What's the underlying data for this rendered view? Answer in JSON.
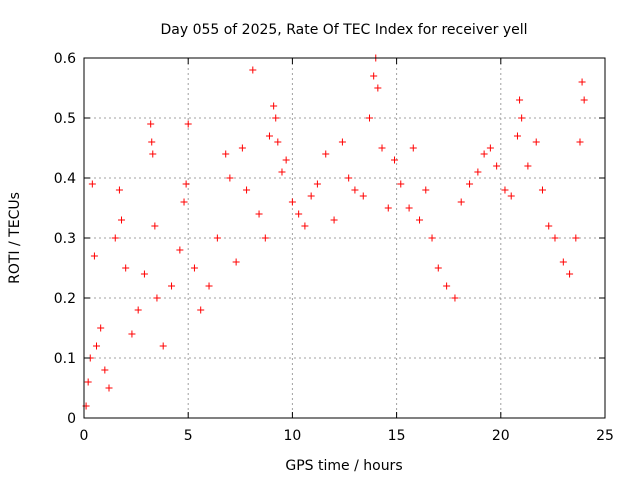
{
  "chart_data": {
    "type": "scatter",
    "title": "Day 055 of 2025, Rate Of TEC Index for receiver yell",
    "xlabel": "GPS time / hours",
    "ylabel": "ROTI / TECUs",
    "xlim": [
      0,
      25
    ],
    "ylim": [
      0,
      0.6
    ],
    "xticks": [
      0,
      5,
      10,
      15,
      20,
      25
    ],
    "xtick_labels": [
      "0",
      "5",
      "10",
      "15",
      "20",
      "25"
    ],
    "yticks": [
      0,
      0.1,
      0.2,
      0.3,
      0.4,
      0.5,
      0.6
    ],
    "ytick_labels": [
      "0",
      "0.1",
      "0.2",
      "0.3",
      "0.4",
      "0.5",
      "0.6"
    ],
    "grid": true,
    "marker": "plus",
    "color": "#ff0000",
    "series": [
      {
        "points": [
          [
            0.1,
            0.02
          ],
          [
            0.2,
            0.06
          ],
          [
            0.3,
            0.1
          ],
          [
            0.4,
            0.39
          ],
          [
            0.5,
            0.27
          ],
          [
            0.6,
            0.12
          ],
          [
            0.8,
            0.15
          ],
          [
            1.0,
            0.08
          ],
          [
            1.2,
            0.05
          ],
          [
            1.5,
            0.3
          ],
          [
            1.7,
            0.38
          ],
          [
            1.8,
            0.33
          ],
          [
            2.0,
            0.25
          ],
          [
            2.3,
            0.14
          ],
          [
            2.6,
            0.18
          ],
          [
            2.9,
            0.24
          ],
          [
            3.2,
            0.49
          ],
          [
            3.25,
            0.46
          ],
          [
            3.3,
            0.44
          ],
          [
            3.4,
            0.32
          ],
          [
            3.5,
            0.2
          ],
          [
            3.8,
            0.12
          ],
          [
            4.2,
            0.22
          ],
          [
            4.6,
            0.28
          ],
          [
            4.8,
            0.36
          ],
          [
            4.9,
            0.39
          ],
          [
            5.0,
            0.49
          ],
          [
            5.3,
            0.25
          ],
          [
            5.6,
            0.18
          ],
          [
            6.0,
            0.22
          ],
          [
            6.4,
            0.3
          ],
          [
            6.8,
            0.44
          ],
          [
            7.0,
            0.4
          ],
          [
            7.3,
            0.26
          ],
          [
            7.6,
            0.45
          ],
          [
            7.8,
            0.38
          ],
          [
            8.1,
            0.58
          ],
          [
            8.4,
            0.34
          ],
          [
            8.7,
            0.3
          ],
          [
            8.9,
            0.47
          ],
          [
            9.1,
            0.52
          ],
          [
            9.2,
            0.5
          ],
          [
            9.3,
            0.46
          ],
          [
            9.5,
            0.41
          ],
          [
            9.7,
            0.43
          ],
          [
            10.0,
            0.36
          ],
          [
            10.3,
            0.34
          ],
          [
            10.6,
            0.32
          ],
          [
            10.9,
            0.37
          ],
          [
            11.2,
            0.39
          ],
          [
            11.6,
            0.44
          ],
          [
            12.0,
            0.33
          ],
          [
            12.4,
            0.46
          ],
          [
            12.7,
            0.4
          ],
          [
            13.0,
            0.38
          ],
          [
            13.4,
            0.37
          ],
          [
            13.7,
            0.5
          ],
          [
            13.9,
            0.57
          ],
          [
            14.0,
            0.6
          ],
          [
            14.1,
            0.55
          ],
          [
            14.3,
            0.45
          ],
          [
            14.6,
            0.35
          ],
          [
            14.9,
            0.43
          ],
          [
            15.2,
            0.39
          ],
          [
            15.6,
            0.35
          ],
          [
            15.8,
            0.45
          ],
          [
            16.1,
            0.33
          ],
          [
            16.4,
            0.38
          ],
          [
            16.7,
            0.3
          ],
          [
            17.0,
            0.25
          ],
          [
            17.4,
            0.22
          ],
          [
            17.8,
            0.2
          ],
          [
            18.1,
            0.36
          ],
          [
            18.5,
            0.39
          ],
          [
            18.9,
            0.41
          ],
          [
            19.2,
            0.44
          ],
          [
            19.5,
            0.45
          ],
          [
            19.8,
            0.42
          ],
          [
            20.2,
            0.38
          ],
          [
            20.5,
            0.37
          ],
          [
            20.8,
            0.47
          ],
          [
            20.9,
            0.53
          ],
          [
            21.0,
            0.5
          ],
          [
            21.3,
            0.42
          ],
          [
            21.7,
            0.46
          ],
          [
            22.0,
            0.38
          ],
          [
            22.3,
            0.32
          ],
          [
            22.6,
            0.3
          ],
          [
            23.0,
            0.26
          ],
          [
            23.3,
            0.24
          ],
          [
            23.6,
            0.3
          ],
          [
            23.8,
            0.46
          ],
          [
            23.9,
            0.56
          ],
          [
            24.0,
            0.53
          ]
        ]
      }
    ]
  }
}
